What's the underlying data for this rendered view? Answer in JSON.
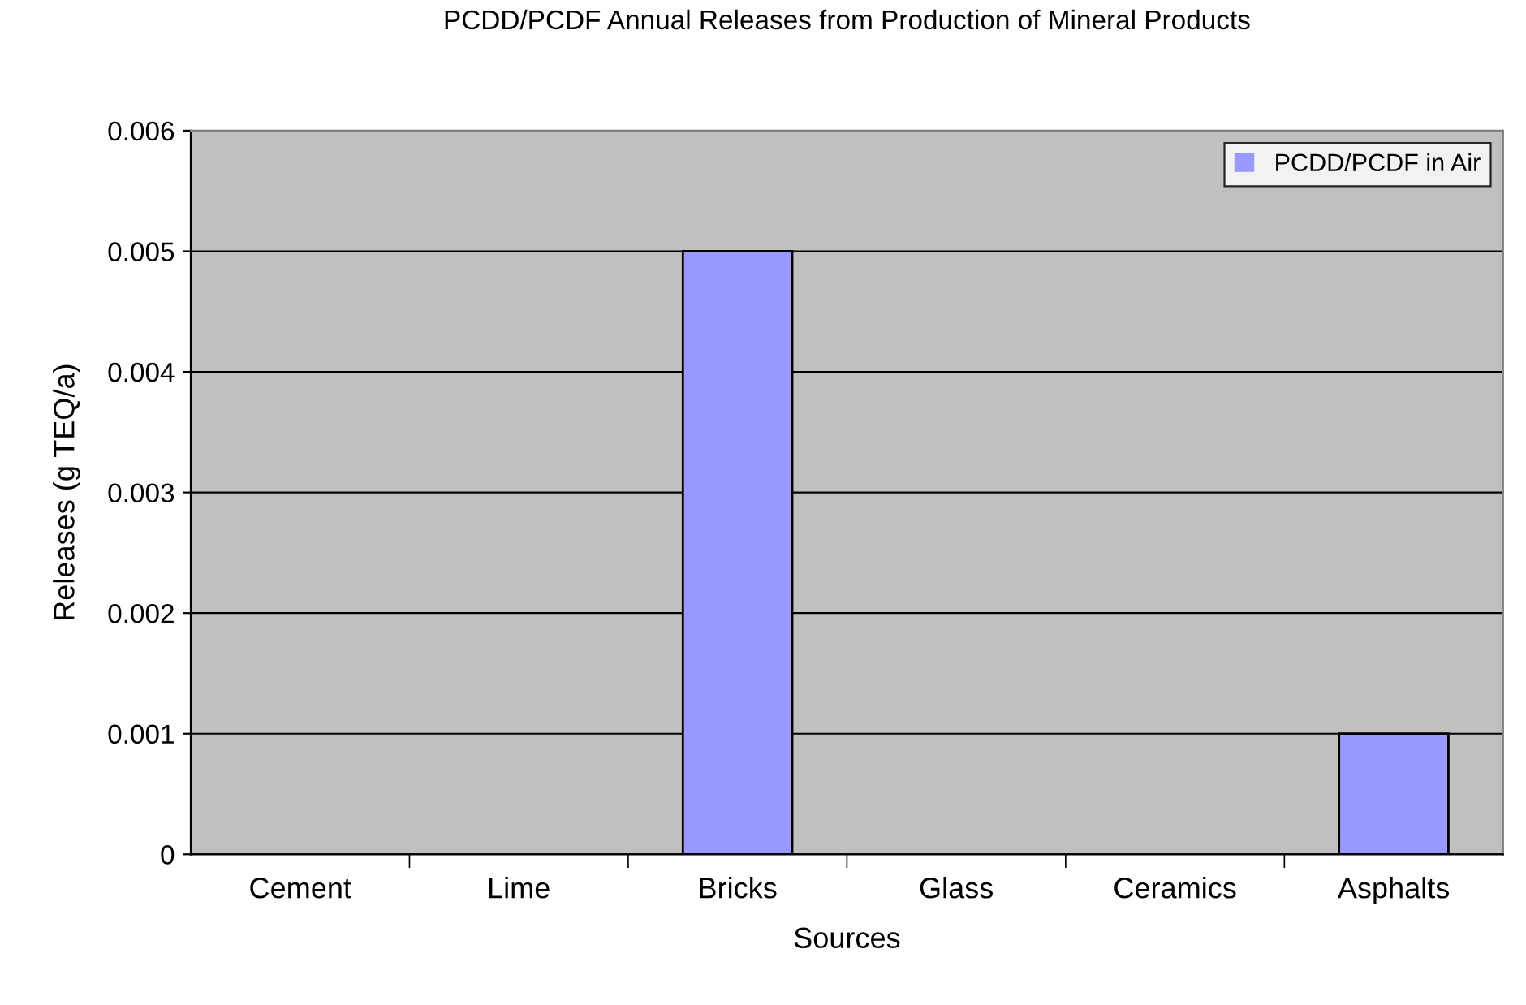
{
  "chart_data": {
    "type": "bar",
    "title": "PCDD/PCDF Annual Releases from Production of Mineral Products",
    "xlabel": "Sources",
    "ylabel": "Releases (g TEQ/a)",
    "categories": [
      "Cement",
      "Lime",
      "Bricks",
      "Glass",
      "Ceramics",
      "Asphalts"
    ],
    "series": [
      {
        "name": "PCDD/PCDF in Air",
        "color": "#9999ff",
        "values": [
          0,
          0,
          0.005,
          0,
          0,
          0.001
        ]
      }
    ],
    "ylim": [
      0,
      0.006
    ],
    "yticks": [
      0,
      0.001,
      0.002,
      0.003,
      0.004,
      0.005,
      0.006
    ],
    "grid": "y",
    "legend": "top right"
  }
}
